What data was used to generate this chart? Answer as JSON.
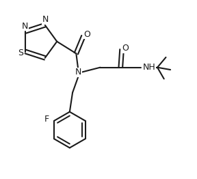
{
  "bg_color": "#ffffff",
  "line_color": "#1a1a1a",
  "line_width": 1.5,
  "font_size": 8.5,
  "figsize": [
    2.88,
    2.62
  ],
  "dpi": 100,
  "ring_s_label": "S",
  "ring_n1_label": "N",
  "ring_n2_label": "N",
  "o1_label": "O",
  "o2_label": "O",
  "n_label": "N",
  "nh_label": "NH",
  "f_label": "F"
}
